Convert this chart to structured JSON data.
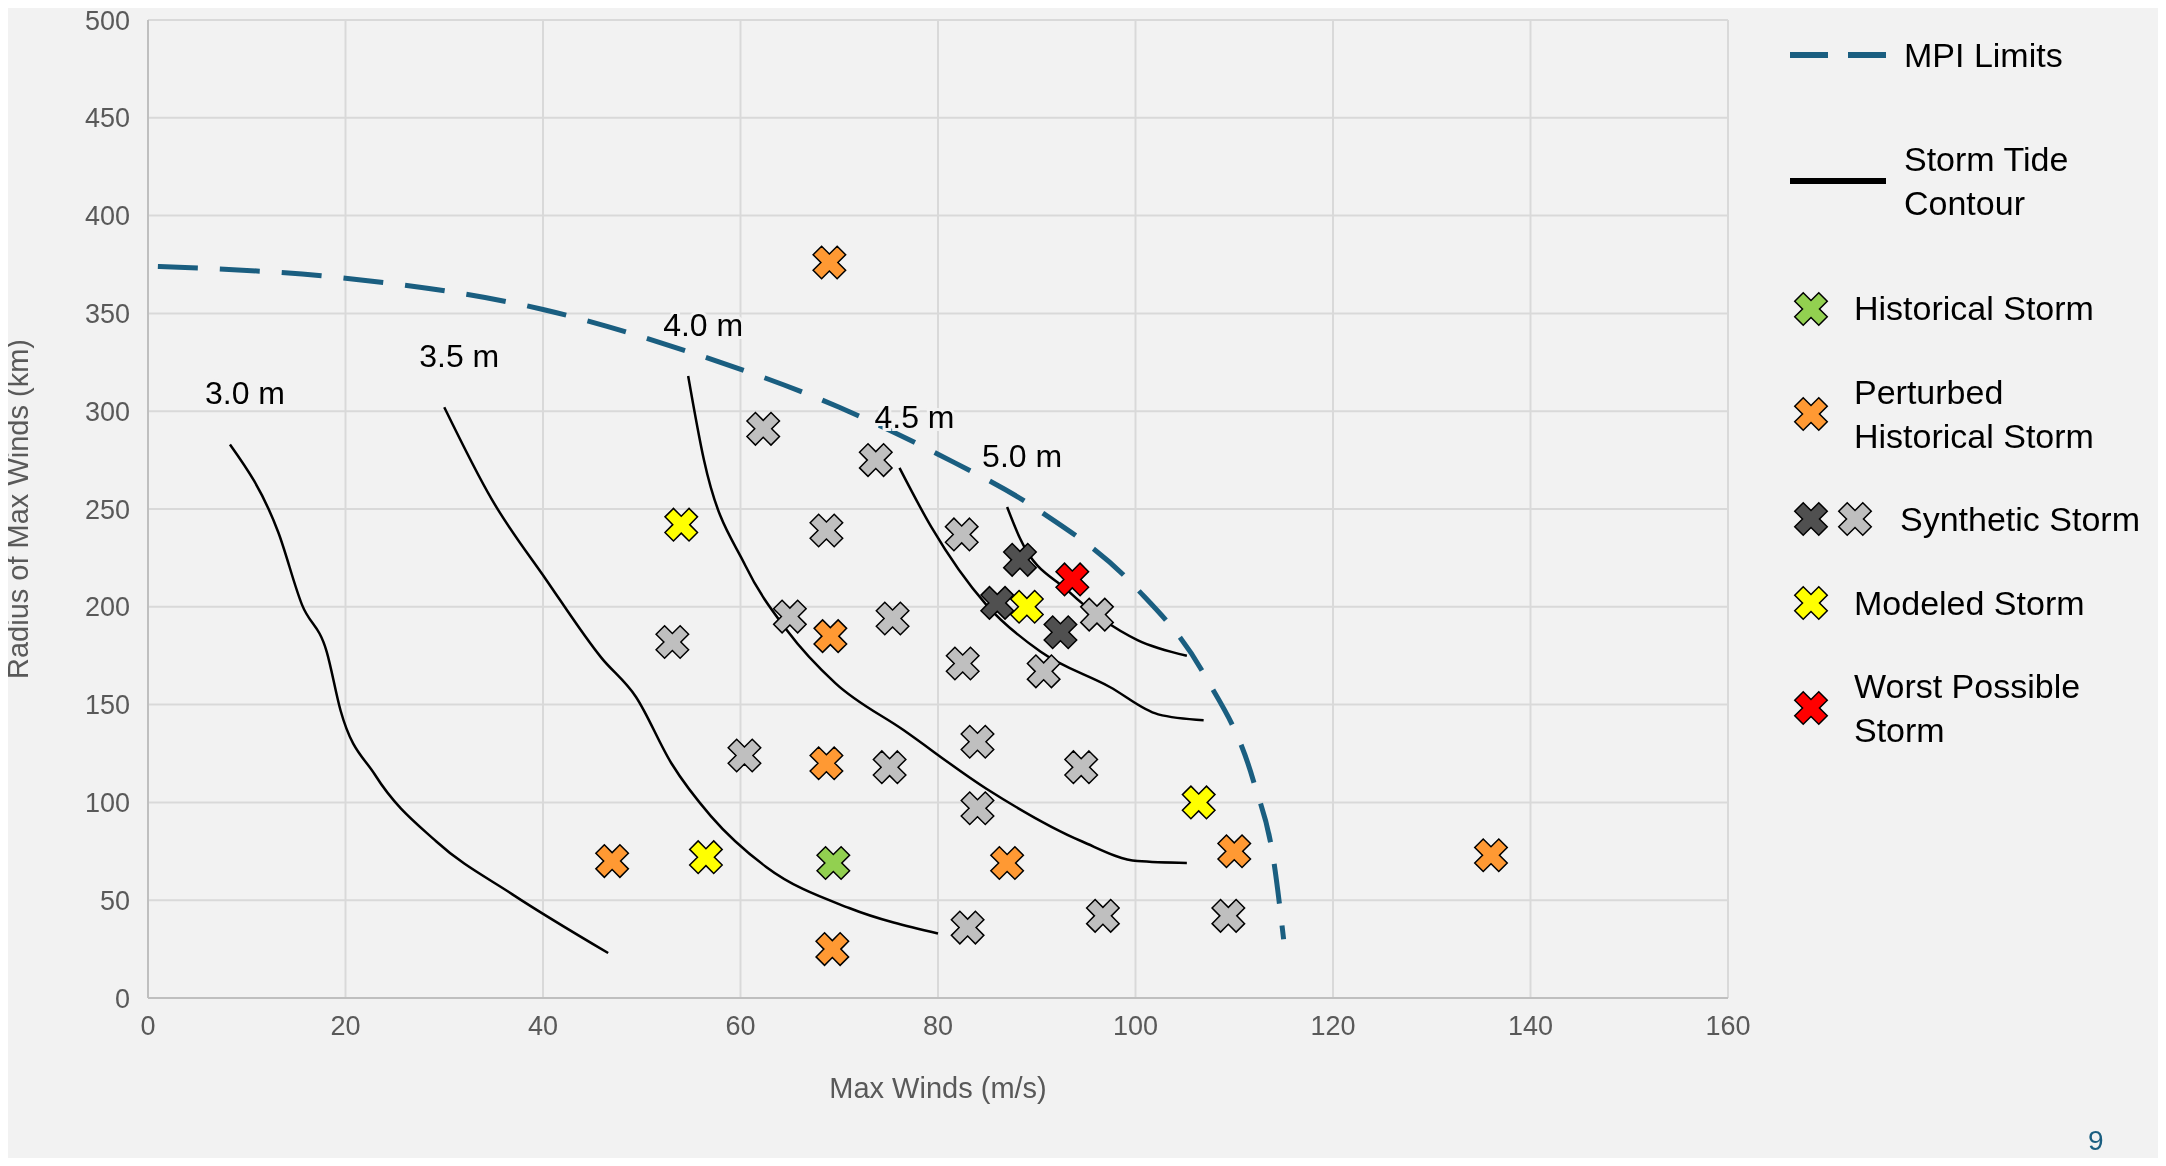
{
  "chart_data": {
    "type": "scatter",
    "xlabel": "Max Winds (m/s)",
    "ylabel": "Radius of Max Winds (km)",
    "xlim": [
      0,
      160
    ],
    "xticks": [
      0,
      20,
      40,
      60,
      80,
      100,
      120,
      140,
      160
    ],
    "ylim": [
      0,
      500
    ],
    "yticks": [
      0,
      50,
      100,
      150,
      200,
      250,
      300,
      350,
      400,
      450,
      500
    ],
    "grid": true,
    "legend": "right",
    "series": [
      {
        "type": "line",
        "name": "MPI Limits",
        "color": "#1a5e80",
        "line_style": "dashed",
        "x": [
          1,
          20,
          40,
          55,
          70,
          80,
          90,
          100,
          107,
          112,
          114,
          115
        ],
        "values": [
          374,
          368,
          352,
          330,
          302,
          278,
          250,
          210,
          165,
          110,
          70,
          30
        ]
      },
      {
        "type": "line",
        "name": "3.0 m",
        "color": "#000000",
        "line_style": "solid",
        "x": [
          8.3,
          13.2,
          15.6,
          18.1,
          19.5,
          23,
          29.2,
          36.9,
          46.6
        ],
        "values": [
          283,
          238,
          201,
          177,
          147,
          114,
          80,
          53,
          23
        ]
      },
      {
        "type": "line",
        "name": "3.5 m",
        "color": "#000000",
        "line_style": "solid",
        "x": [
          30,
          34.8,
          40.3,
          45.9,
          49.4,
          53,
          57,
          62.6,
          71,
          80
        ],
        "values": [
          302,
          255,
          214,
          174,
          154,
          120,
          93,
          67,
          46,
          33
        ]
      },
      {
        "type": "line",
        "name": "4.0 m",
        "color": "#000000",
        "line_style": "solid",
        "x": [
          54.7,
          56.3,
          60.5,
          64.7,
          69.6,
          76.5,
          84.9,
          94.6,
          100.2,
          105.2
        ],
        "values": [
          318,
          275,
          221,
          188,
          161,
          137,
          107,
          80,
          70,
          69
        ]
      },
      {
        "type": "line",
        "name": "4.5 m",
        "color": "#000000",
        "line_style": "solid",
        "x": [
          76.1,
          79.3,
          84.9,
          90.4,
          97.4,
          102.3,
          106.9
        ],
        "values": [
          271,
          241,
          201,
          177,
          159,
          145,
          142
        ]
      },
      {
        "type": "line",
        "name": "5.0 m",
        "color": "#000000",
        "line_style": "solid",
        "x": [
          87,
          88.3,
          93.2,
          100.2,
          105.2
        ],
        "values": [
          251,
          235,
          208,
          183,
          175
        ]
      },
      {
        "name": "Historical Storm",
        "color": "#92d050",
        "marker": "cross",
        "x": [
          69.4
        ],
        "values": [
          69
        ]
      },
      {
        "name": "Perturbed Historical Storm",
        "color": "#ff9933",
        "marker": "cross",
        "x": [
          69,
          69.1,
          68.7,
          47,
          69.3,
          87,
          110,
          136
        ],
        "values": [
          376,
          185,
          120,
          70,
          25,
          69,
          75,
          73
        ]
      },
      {
        "name": "Synthetic Storm",
        "color": "#bfbfbf",
        "marker": "cross",
        "x": [
          62.3,
          73.7,
          68.7,
          82.4,
          65,
          75.4,
          53.1,
          82.5,
          90.7,
          96.1,
          60.4,
          75.1,
          84,
          94.5,
          84,
          83,
          96.7,
          109.4
        ],
        "values": [
          291,
          275,
          239,
          237,
          195,
          194,
          182,
          171,
          167,
          196,
          124,
          118,
          131,
          118,
          97,
          36,
          42,
          42
        ]
      },
      {
        "color": "#505050",
        "marker": "cross",
        "x": [
          88.3,
          86,
          92.4
        ],
        "values": [
          224,
          202,
          187
        ]
      },
      {
        "name": "Modeled Storm",
        "color": "#ffff00",
        "marker": "cross",
        "x": [
          54,
          56.5,
          89,
          106.4
        ],
        "values": [
          242,
          72,
          200,
          100
        ]
      },
      {
        "name": "Worst Possible Storm",
        "color": "#ff0000",
        "marker": "cross",
        "x": [
          93.6
        ],
        "values": [
          214
        ]
      }
    ],
    "annotations": [
      "Storm Tide Contour",
      "9"
    ]
  }
}
